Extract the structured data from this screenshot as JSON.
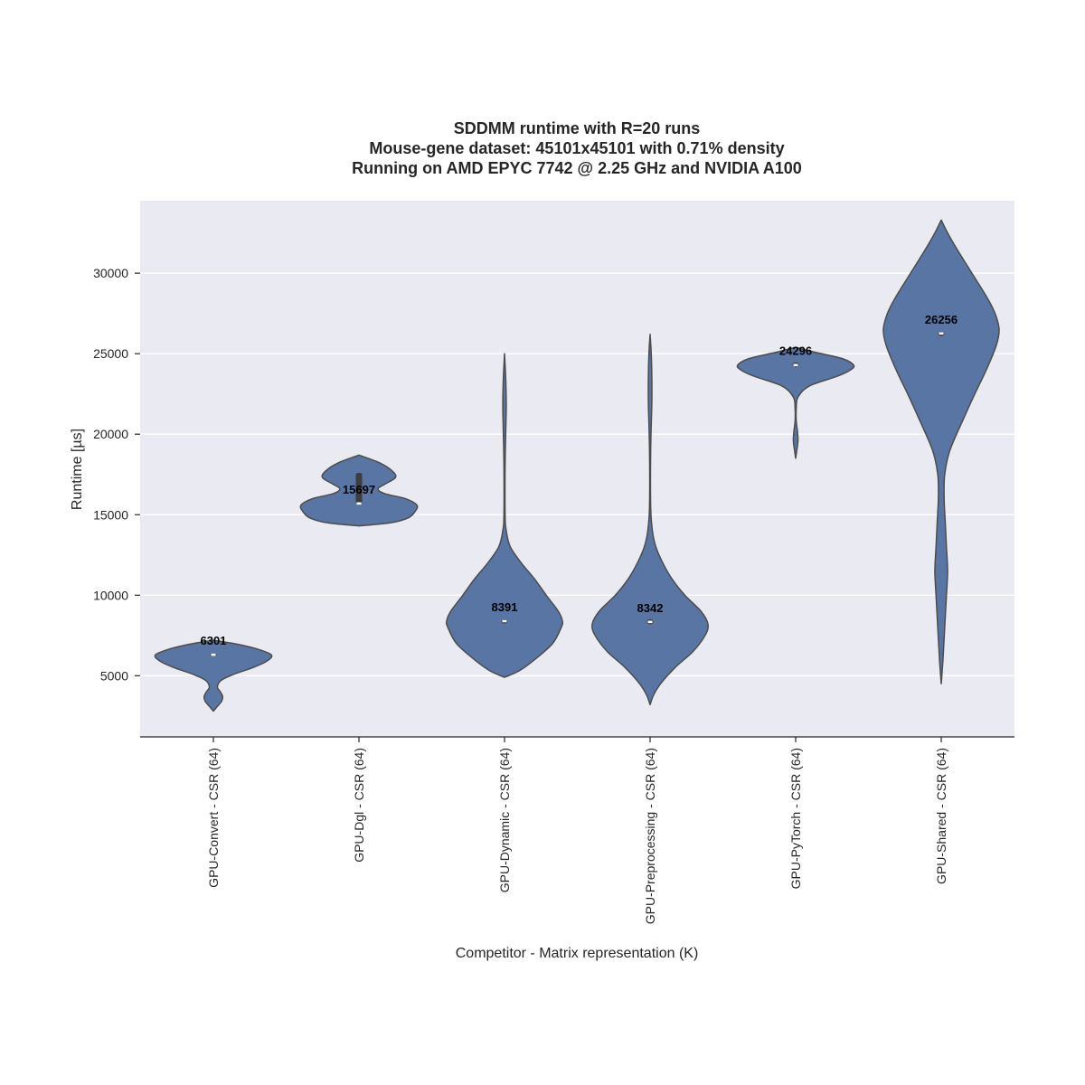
{
  "chart_data": {
    "type": "violin",
    "title": [
      "SDDMM runtime with R=20 runs",
      "Mouse-gene dataset: 45101x45101 with 0.71% density",
      "Running on AMD EPYC 7742 @ 2.25 GHz and NVIDIA A100"
    ],
    "xlabel": "Competitor - Matrix representation (K)",
    "ylabel": "Runtime [µs]",
    "ylim": [
      1200,
      34500
    ],
    "yticks": [
      5000,
      10000,
      15000,
      20000,
      25000,
      30000
    ],
    "ytick_labels": [
      "5000",
      "10000",
      "15000",
      "20000",
      "25000",
      "30000"
    ],
    "grid": true,
    "colors": {
      "violin_fill": "#5875a4",
      "violin_edge": "#4c4c4c",
      "plot_bg": "#eaeaf2",
      "grid": "#ffffff"
    },
    "categories": [
      "GPU-Convert - CSR (64)",
      "GPU-Dgl - CSR (64)",
      "GPU-Dynamic - CSR (64)",
      "GPU-Preprocessing - CSR (64)",
      "GPU-PyTorch - CSR (64)",
      "GPU-Shared - CSR (64)"
    ],
    "medians": [
      6301,
      15697,
      8391,
      8342,
      24296,
      26256
    ],
    "median_labels": [
      "6301",
      "15697",
      "8391",
      "8342",
      "24296",
      "26256"
    ],
    "quartiles": [
      [
        6280,
        6320
      ],
      [
        15700,
        17600
      ],
      [
        8250,
        8500
      ],
      [
        8200,
        8500
      ],
      [
        24200,
        24450
      ],
      [
        26100,
        26350
      ]
    ],
    "density_profiles": [
      [
        [
          2800,
          0.0
        ],
        [
          3100,
          0.07
        ],
        [
          3400,
          0.14
        ],
        [
          3700,
          0.16
        ],
        [
          4000,
          0.12
        ],
        [
          4300,
          0.07
        ],
        [
          4700,
          0.13
        ],
        [
          5100,
          0.36
        ],
        [
          5500,
          0.68
        ],
        [
          5900,
          0.92
        ],
        [
          6300,
          1.0
        ],
        [
          6700,
          0.72
        ],
        [
          7000,
          0.35
        ],
        [
          7200,
          0.0
        ]
      ],
      [
        [
          14300,
          0.0
        ],
        [
          14500,
          0.55
        ],
        [
          14800,
          0.85
        ],
        [
          15200,
          0.97
        ],
        [
          15600,
          1.0
        ],
        [
          16000,
          0.8
        ],
        [
          16300,
          0.45
        ],
        [
          16600,
          0.33
        ],
        [
          16900,
          0.45
        ],
        [
          17300,
          0.63
        ],
        [
          17700,
          0.58
        ],
        [
          18200,
          0.37
        ],
        [
          18700,
          0.0
        ]
      ],
      [
        [
          4900,
          0.0
        ],
        [
          5300,
          0.25
        ],
        [
          6000,
          0.52
        ],
        [
          7000,
          0.83
        ],
        [
          8000,
          0.98
        ],
        [
          8400,
          1.0
        ],
        [
          9000,
          0.93
        ],
        [
          10000,
          0.72
        ],
        [
          11000,
          0.52
        ],
        [
          12000,
          0.29
        ],
        [
          13000,
          0.1
        ],
        [
          14000,
          0.03
        ],
        [
          15000,
          0.01
        ],
        [
          18000,
          0.01
        ],
        [
          20000,
          0.02
        ],
        [
          21800,
          0.03
        ],
        [
          23500,
          0.02
        ],
        [
          25000,
          0.0
        ]
      ],
      [
        [
          3200,
          0.0
        ],
        [
          3800,
          0.06
        ],
        [
          4500,
          0.18
        ],
        [
          5500,
          0.43
        ],
        [
          6500,
          0.74
        ],
        [
          7500,
          0.95
        ],
        [
          8200,
          1.0
        ],
        [
          9000,
          0.88
        ],
        [
          10000,
          0.6
        ],
        [
          11000,
          0.38
        ],
        [
          12000,
          0.22
        ],
        [
          13000,
          0.1
        ],
        [
          14000,
          0.04
        ],
        [
          15500,
          0.01
        ],
        [
          19000,
          0.01
        ],
        [
          22000,
          0.03
        ],
        [
          23500,
          0.03
        ],
        [
          25000,
          0.02
        ],
        [
          26200,
          0.0
        ]
      ],
      [
        [
          18500,
          0.0
        ],
        [
          19000,
          0.02
        ],
        [
          19600,
          0.04
        ],
        [
          20200,
          0.03
        ],
        [
          20800,
          0.01
        ],
        [
          21600,
          0.01
        ],
        [
          22300,
          0.04
        ],
        [
          23000,
          0.24
        ],
        [
          23600,
          0.72
        ],
        [
          24000,
          0.95
        ],
        [
          24300,
          1.0
        ],
        [
          24700,
          0.8
        ],
        [
          25100,
          0.32
        ],
        [
          25400,
          0.0
        ]
      ],
      [
        [
          4500,
          0.0
        ],
        [
          6000,
          0.03
        ],
        [
          8000,
          0.06
        ],
        [
          10000,
          0.09
        ],
        [
          11500,
          0.11
        ],
        [
          13000,
          0.09
        ],
        [
          14500,
          0.07
        ],
        [
          16000,
          0.05
        ],
        [
          17500,
          0.06
        ],
        [
          19000,
          0.15
        ],
        [
          21000,
          0.39
        ],
        [
          22500,
          0.58
        ],
        [
          24000,
          0.78
        ],
        [
          25500,
          0.95
        ],
        [
          26500,
          1.0
        ],
        [
          27500,
          0.93
        ],
        [
          28500,
          0.79
        ],
        [
          30000,
          0.53
        ],
        [
          31500,
          0.27
        ],
        [
          32500,
          0.11
        ],
        [
          33300,
          0.0
        ]
      ]
    ]
  }
}
